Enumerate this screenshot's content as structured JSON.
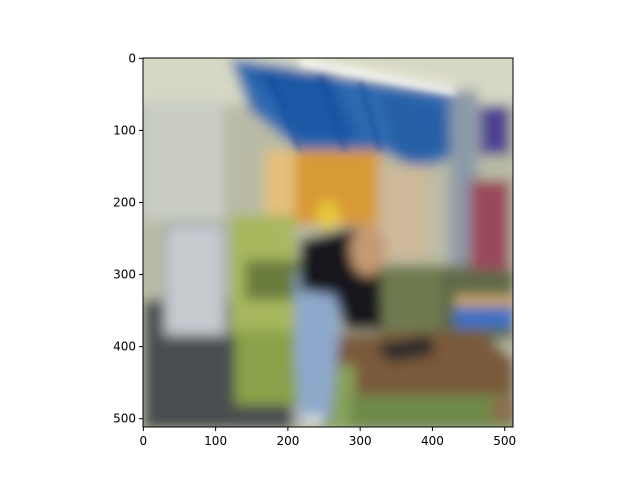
{
  "image": {
    "description_icon": "blurred-workshop-photo",
    "x_ticks": [
      "0",
      "100",
      "200",
      "300",
      "400",
      "500"
    ],
    "y_ticks": [
      "0",
      "100",
      "200",
      "300",
      "400",
      "500"
    ],
    "x_range": [
      0,
      512
    ],
    "y_range": [
      0,
      512
    ]
  },
  "colors": {
    "axes": "#000000",
    "background": "#ffffff"
  }
}
